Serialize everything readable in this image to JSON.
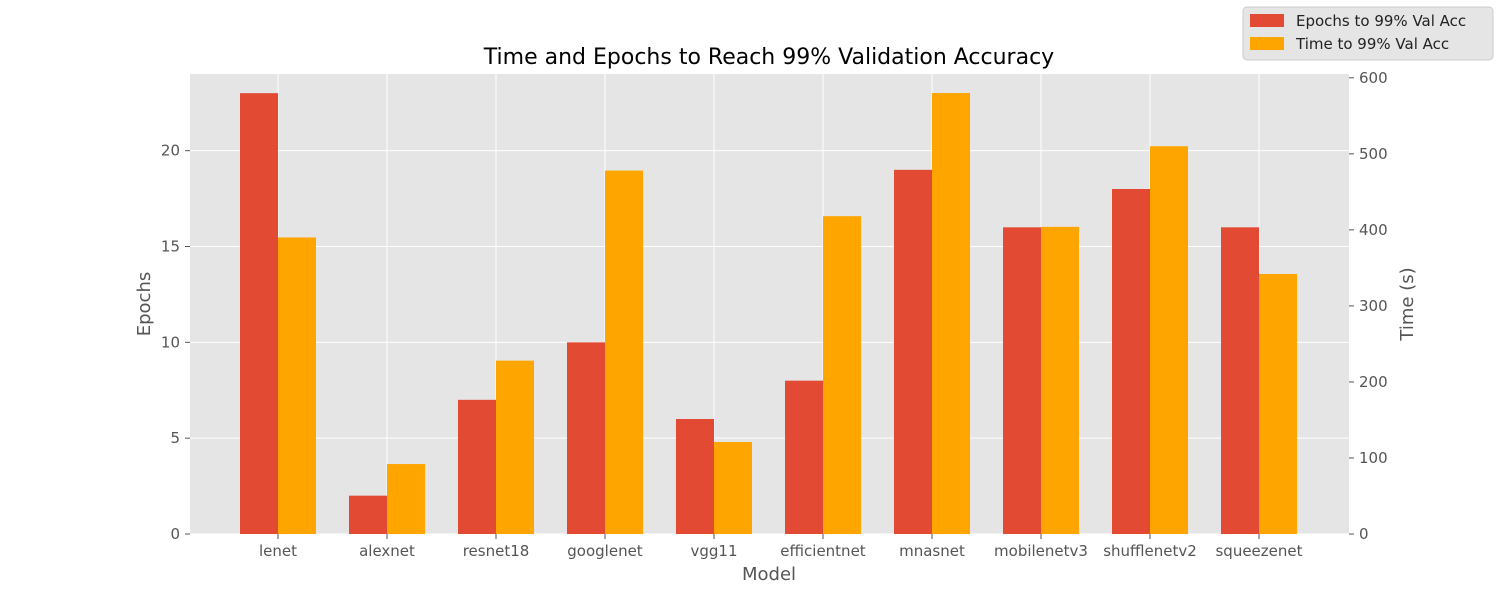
{
  "chart_data": {
    "type": "bar",
    "title": "Time and Epochs to Reach 99% Validation Accuracy",
    "xlabel": "Model",
    "ylabel_left": "Epochs",
    "ylabel_right": "Time (s)",
    "categories": [
      "lenet",
      "alexnet",
      "resnet18",
      "googlenet",
      "vgg11",
      "efficientnet",
      "mnasnet",
      "mobilenetv3",
      "shufflenetv2",
      "squeezenet"
    ],
    "series": [
      {
        "name": "Epochs to 99% Val Acc",
        "axis": "left",
        "color": "#E24A33",
        "values": [
          23,
          2,
          7,
          10,
          6,
          8,
          19,
          16,
          18,
          16
        ]
      },
      {
        "name": "Time to 99% Val Acc",
        "axis": "right",
        "color": "#FFA500",
        "values": [
          390,
          92,
          228,
          478,
          121,
          418,
          580,
          404,
          510,
          342
        ]
      }
    ],
    "ylim_left": [
      0,
      24
    ],
    "ylim_right": [
      0,
      605
    ],
    "yticks_left": [
      0,
      5,
      10,
      15,
      20
    ],
    "yticks_right": [
      0,
      100,
      200,
      300,
      400,
      500,
      600
    ],
    "grid": true,
    "legend_position": "top-right",
    "colors": {
      "background": "#E5E5E5",
      "grid": "#FFFFFF",
      "tick_text": "#555555",
      "title_text": "#000000"
    }
  }
}
